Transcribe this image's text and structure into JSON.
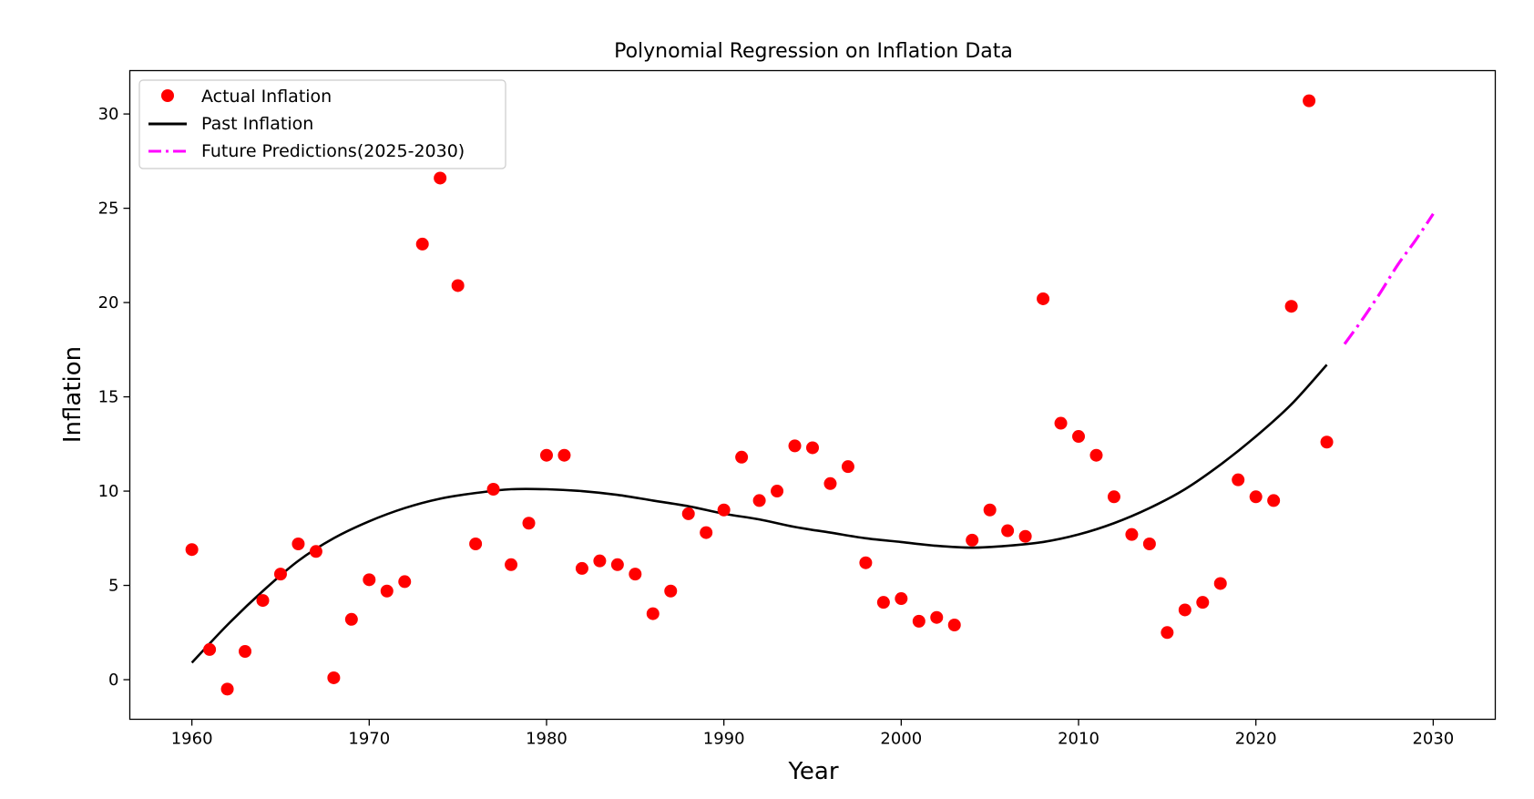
{
  "chart_data": {
    "type": "scatter",
    "title": "Polynomial Regression on Inflation Data",
    "xlabel": "Year",
    "ylabel": "Inflation",
    "xlim": [
      1956.5,
      2033.5
    ],
    "ylim": [
      -2.1,
      32.3
    ],
    "xticks": [
      1960,
      1970,
      1980,
      1990,
      2000,
      2010,
      2020,
      2030
    ],
    "yticks": [
      0,
      5,
      10,
      15,
      20,
      25,
      30
    ],
    "grid": false,
    "legend_position": "top-left",
    "legend": [
      {
        "label": "Actual Inflation",
        "kind": "marker",
        "color": "#ff0000"
      },
      {
        "label": "Past Inflation",
        "kind": "line",
        "color": "#000000"
      },
      {
        "label": "Future Predictions(2025-2030)",
        "kind": "dashdot",
        "color": "#ff00ff"
      }
    ],
    "series": [
      {
        "name": "Actual Inflation",
        "kind": "scatter",
        "color": "#ff0000",
        "x": [
          1960,
          1961,
          1962,
          1963,
          1964,
          1965,
          1966,
          1967,
          1968,
          1969,
          1970,
          1971,
          1972,
          1973,
          1974,
          1975,
          1976,
          1977,
          1978,
          1979,
          1980,
          1981,
          1982,
          1983,
          1984,
          1985,
          1986,
          1987,
          1988,
          1989,
          1990,
          1991,
          1992,
          1993,
          1994,
          1995,
          1996,
          1997,
          1998,
          1999,
          2000,
          2001,
          2002,
          2003,
          2004,
          2005,
          2006,
          2007,
          2008,
          2009,
          2010,
          2011,
          2012,
          2013,
          2014,
          2015,
          2016,
          2017,
          2018,
          2019,
          2020,
          2021,
          2022,
          2023,
          2024
        ],
        "y": [
          6.9,
          1.6,
          -0.5,
          1.5,
          4.2,
          5.6,
          7.2,
          6.8,
          0.1,
          3.2,
          5.3,
          4.7,
          5.2,
          23.1,
          26.6,
          20.9,
          7.2,
          10.1,
          6.1,
          8.3,
          11.9,
          11.9,
          5.9,
          6.3,
          6.1,
          5.6,
          3.5,
          4.7,
          8.8,
          7.8,
          9.0,
          11.8,
          9.5,
          10.0,
          12.4,
          12.3,
          10.4,
          11.3,
          6.2,
          4.1,
          4.3,
          3.1,
          3.3,
          2.9,
          7.4,
          9.0,
          7.9,
          7.6,
          20.2,
          13.6,
          12.9,
          11.9,
          9.7,
          7.7,
          7.2,
          2.5,
          3.7,
          4.1,
          5.1,
          10.6,
          9.7,
          9.5,
          19.8,
          30.7,
          12.6
        ]
      },
      {
        "name": "Past Inflation",
        "kind": "line",
        "color": "#000000",
        "x": [
          1960,
          1962,
          1964,
          1966,
          1968,
          1970,
          1972,
          1974,
          1976,
          1978,
          1980,
          1982,
          1984,
          1986,
          1988,
          1990,
          1992,
          1994,
          1996,
          1998,
          2000,
          2002,
          2004,
          2006,
          2008,
          2010,
          2012,
          2014,
          2016,
          2018,
          2020,
          2022,
          2024
        ],
        "y": [
          0.9,
          2.9,
          4.7,
          6.3,
          7.5,
          8.4,
          9.1,
          9.6,
          9.9,
          10.1,
          10.1,
          10.0,
          9.8,
          9.5,
          9.2,
          8.8,
          8.5,
          8.1,
          7.8,
          7.5,
          7.3,
          7.1,
          7.0,
          7.1,
          7.3,
          7.7,
          8.3,
          9.1,
          10.1,
          11.4,
          12.9,
          14.6,
          16.7
        ]
      },
      {
        "name": "Future Predictions(2025-2030)",
        "kind": "dashdot",
        "color": "#ff00ff",
        "x": [
          2025,
          2026,
          2027,
          2028,
          2029,
          2030
        ],
        "y": [
          17.8,
          19.1,
          20.5,
          22.0,
          23.3,
          24.7
        ]
      }
    ]
  }
}
